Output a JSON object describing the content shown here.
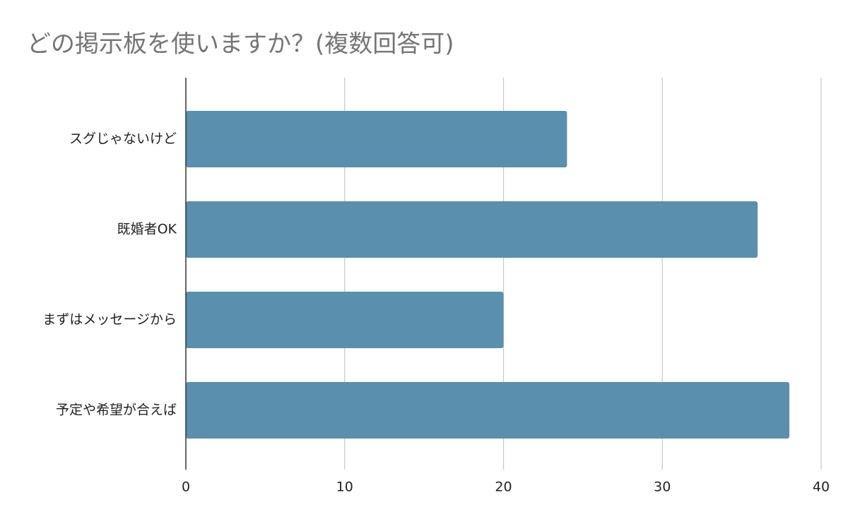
{
  "chart_data": {
    "type": "bar",
    "orientation": "horizontal",
    "title": "どの掲示板を使いますか？(複数回答可)",
    "categories": [
      "スグじゃないけど",
      "既婚者OK",
      "まずはメッセージから",
      "予定や希望が合えば"
    ],
    "values": [
      24,
      36,
      20,
      38
    ],
    "color": "#5a90ae",
    "xlim": [
      0,
      40
    ],
    "xticks": [
      0,
      10,
      20,
      30,
      40
    ],
    "grid": true
  }
}
